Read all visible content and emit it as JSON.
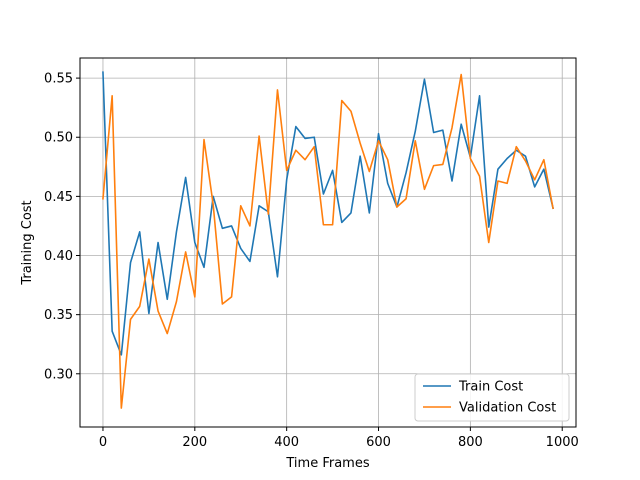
{
  "chart_data": {
    "type": "line",
    "title": "",
    "xlabel": "Time Frames",
    "ylabel": "Training Cost",
    "xlim": [
      -50,
      1030
    ],
    "ylim": [
      0.255,
      0.567
    ],
    "xticks": [
      0,
      200,
      400,
      600,
      800,
      1000
    ],
    "yticks": [
      0.3,
      0.35,
      0.4,
      0.45,
      0.5,
      0.55
    ],
    "xtick_labels": [
      "0",
      "200",
      "400",
      "600",
      "800",
      "1000"
    ],
    "ytick_labels": [
      "0.30",
      "0.35",
      "0.40",
      "0.45",
      "0.50",
      "0.55"
    ],
    "grid": true,
    "legend_position": "lower-right",
    "x": [
      0,
      20,
      40,
      60,
      80,
      100,
      120,
      140,
      160,
      180,
      200,
      220,
      240,
      260,
      280,
      300,
      320,
      340,
      360,
      380,
      400,
      420,
      440,
      460,
      480,
      500,
      520,
      540,
      560,
      580,
      600,
      620,
      640,
      660,
      680,
      700,
      720,
      740,
      760,
      780,
      800,
      820,
      840,
      860,
      880,
      900,
      920,
      940,
      960,
      980
    ],
    "series": [
      {
        "name": "Train Cost",
        "color": "#1f77b4",
        "values": [
          0.555,
          0.336,
          0.316,
          0.394,
          0.42,
          0.351,
          0.411,
          0.363,
          0.42,
          0.466,
          0.411,
          0.39,
          0.45,
          0.423,
          0.425,
          0.406,
          0.395,
          0.442,
          0.437,
          0.382,
          0.464,
          0.509,
          0.499,
          0.5,
          0.452,
          0.472,
          0.428,
          0.436,
          0.484,
          0.436,
          0.503,
          0.461,
          0.441,
          0.47,
          0.505,
          0.549,
          0.504,
          0.506,
          0.463,
          0.511,
          0.483,
          0.535,
          0.424,
          0.473,
          0.482,
          0.489,
          0.484,
          0.458,
          0.473,
          0.44
        ]
      },
      {
        "name": "Validation Cost",
        "color": "#ff7f0e",
        "values": [
          0.448,
          0.535,
          0.271,
          0.346,
          0.357,
          0.397,
          0.353,
          0.334,
          0.361,
          0.403,
          0.365,
          0.498,
          0.443,
          0.359,
          0.365,
          0.442,
          0.425,
          0.501,
          0.435,
          0.54,
          0.472,
          0.489,
          0.481,
          0.492,
          0.426,
          0.426,
          0.531,
          0.522,
          0.495,
          0.471,
          0.497,
          0.481,
          0.441,
          0.448,
          0.497,
          0.456,
          0.476,
          0.477,
          0.508,
          0.553,
          0.482,
          0.467,
          0.411,
          0.463,
          0.461,
          0.492,
          0.48,
          0.464,
          0.481,
          0.44
        ]
      }
    ]
  }
}
